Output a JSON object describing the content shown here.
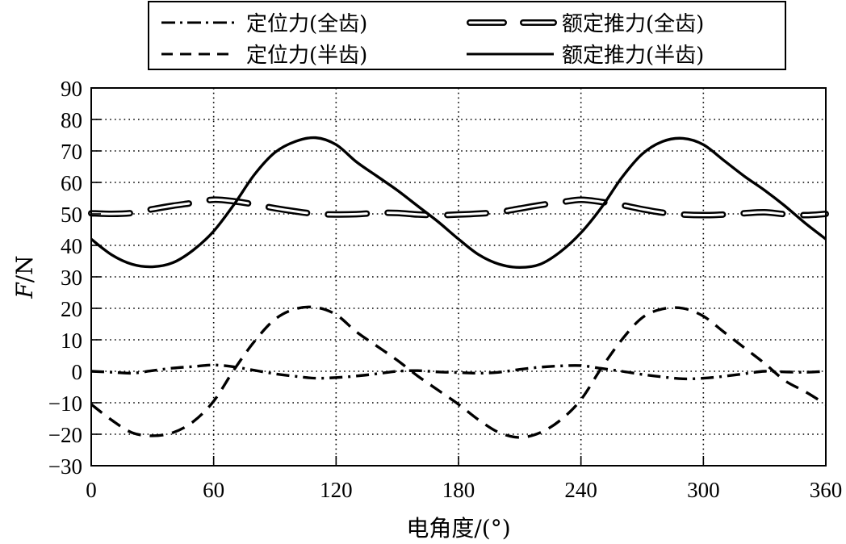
{
  "chart_data": {
    "type": "line",
    "title": "",
    "xlabel": "电角度/(°)",
    "ylabel": "F/N",
    "ylabel_italic_part": "F",
    "ylabel_rest": "/N",
    "xlim": [
      0,
      360
    ],
    "ylim": [
      -30,
      90
    ],
    "xticks": [
      0,
      60,
      120,
      180,
      240,
      300,
      360
    ],
    "yticks": [
      90,
      80,
      70,
      60,
      50,
      40,
      30,
      20,
      10,
      0,
      -10,
      -20,
      -30
    ],
    "xtick_labels": [
      "0",
      "60",
      "120",
      "180",
      "240",
      "300",
      "360"
    ],
    "ytick_labels": [
      "90",
      "80",
      "70",
      "60",
      "50",
      "40",
      "30",
      "20",
      "10",
      "0",
      "−10",
      "−20",
      "−30"
    ],
    "grid": true,
    "grid_style": "dotted",
    "legend_position": "top (above plot, boxed, 2 columns)",
    "series": [
      {
        "name": "定位力(全齿)",
        "style": "dash-dot",
        "x": [
          0,
          10,
          20,
          30,
          40,
          50,
          60,
          70,
          80,
          90,
          100,
          110,
          120,
          130,
          140,
          150,
          160,
          170,
          180,
          190,
          200,
          210,
          220,
          230,
          240,
          250,
          260,
          270,
          280,
          290,
          300,
          310,
          320,
          330,
          340,
          350,
          360
        ],
        "values": [
          0,
          -0.3,
          -0.6,
          0.2,
          1.0,
          1.5,
          2.0,
          1.4,
          0.3,
          -0.8,
          -1.6,
          -2.2,
          -2.0,
          -1.5,
          -0.8,
          0,
          0.2,
          -0.2,
          -0.4,
          -0.6,
          -0.3,
          0.6,
          1.3,
          1.7,
          1.8,
          0.9,
          0,
          -1.0,
          -1.8,
          -2.4,
          -2.2,
          -1.6,
          -0.8,
          0,
          -0.2,
          -0.3,
          0
        ]
      },
      {
        "name": "额定推力(全齿)",
        "style": "double-line long dash",
        "x": [
          0,
          10,
          20,
          30,
          40,
          50,
          60,
          70,
          80,
          90,
          100,
          110,
          120,
          130,
          140,
          150,
          160,
          170,
          180,
          190,
          200,
          210,
          220,
          230,
          240,
          250,
          260,
          270,
          280,
          290,
          300,
          310,
          320,
          330,
          340,
          350,
          360
        ],
        "values": [
          50.2,
          50.0,
          50.3,
          51.5,
          52.6,
          53.5,
          54.5,
          54.0,
          53.0,
          51.8,
          50.8,
          50.0,
          49.8,
          49.9,
          50.3,
          50.3,
          49.8,
          49.6,
          49.8,
          50.1,
          50.6,
          51.7,
          52.8,
          53.7,
          54.5,
          53.8,
          52.8,
          51.5,
          50.4,
          49.8,
          49.6,
          49.8,
          50.2,
          50.5,
          49.9,
          49.6,
          50.0
        ]
      },
      {
        "name": "定位力(半齿)",
        "style": "dashed",
        "x": [
          0,
          10,
          20,
          30,
          40,
          50,
          60,
          70,
          80,
          90,
          100,
          110,
          120,
          130,
          140,
          150,
          160,
          170,
          180,
          190,
          200,
          210,
          220,
          230,
          240,
          250,
          260,
          270,
          280,
          290,
          300,
          310,
          320,
          330,
          340,
          350,
          360
        ],
        "values": [
          -10.5,
          -15.5,
          -19.5,
          -20.5,
          -19.5,
          -16.0,
          -9.5,
          0.5,
          9.5,
          16.5,
          19.8,
          20.3,
          18.0,
          12.5,
          8.0,
          3.5,
          -1.5,
          -6.0,
          -10.5,
          -15.5,
          -19.5,
          -21.0,
          -19.5,
          -15.5,
          -9.0,
          1.0,
          10.0,
          17.0,
          19.8,
          20.0,
          17.5,
          12.5,
          7.5,
          2.5,
          -3.0,
          -6.5,
          -10.5
        ]
      },
      {
        "name": "额定推力(半齿)",
        "style": "solid",
        "x": [
          0,
          10,
          20,
          30,
          40,
          50,
          60,
          70,
          80,
          90,
          100,
          110,
          120,
          130,
          140,
          150,
          160,
          170,
          180,
          190,
          200,
          210,
          220,
          230,
          240,
          250,
          260,
          270,
          280,
          290,
          300,
          310,
          320,
          330,
          340,
          350,
          360
        ],
        "values": [
          42.0,
          37.0,
          34.0,
          33.2,
          34.5,
          38.5,
          44.5,
          53.0,
          62.5,
          69.5,
          73.0,
          74.2,
          72.0,
          66.5,
          62.0,
          57.5,
          52.5,
          47.5,
          42.0,
          37.0,
          34.0,
          33.0,
          34.0,
          38.0,
          44.0,
          52.0,
          61.5,
          69.0,
          73.0,
          74.0,
          72.0,
          67.0,
          62.0,
          57.5,
          52.5,
          47.0,
          42.0
        ]
      }
    ]
  },
  "legend": {
    "items": [
      {
        "label": "定位力(全齿)",
        "style": "dash-dot"
      },
      {
        "label": "额定推力(全齿)",
        "style": "double-dash"
      },
      {
        "label": "定位力(半齿)",
        "style": "dashed"
      },
      {
        "label": "额定推力(半齿)",
        "style": "solid"
      }
    ]
  },
  "colors": {
    "line": "#000000",
    "grid": "#000000",
    "background": "#ffffff"
  }
}
